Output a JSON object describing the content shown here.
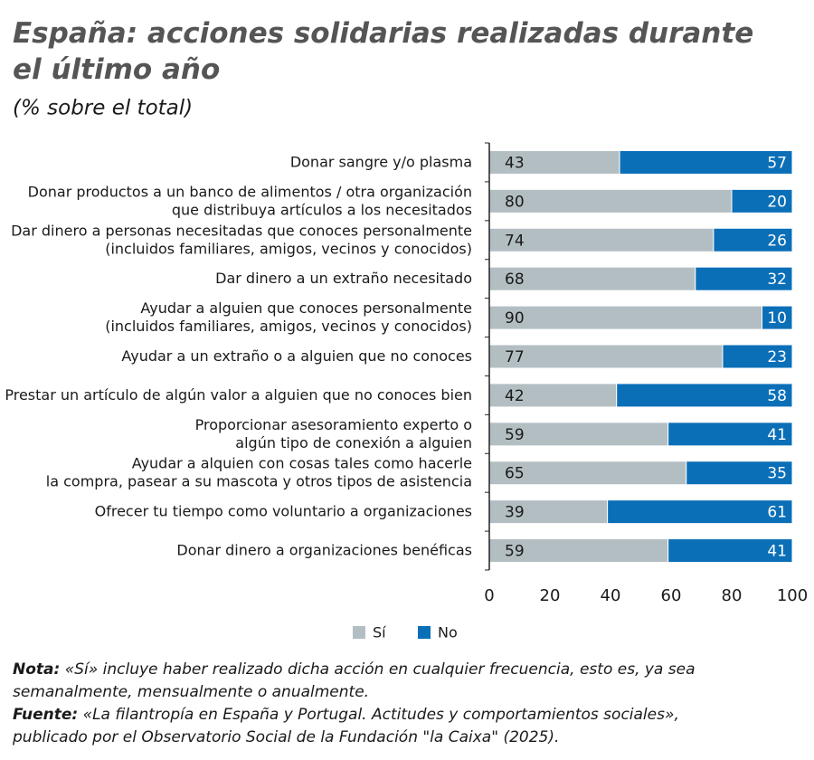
{
  "chart_data": {
    "type": "stacked-bar-horizontal",
    "title": "España: acciones solidarias realizadas durante\nel último año",
    "subtitle": "(% sobre el total)",
    "categories": [
      "Donar sangre y/o plasma",
      "Donar productos a un banco de alimentos / otra organización\nque distribuya artículos a los necesitados",
      "Dar dinero a personas necesitadas que conoces personalmente\n(incluidos familiares, amigos, vecinos y conocidos)",
      "Dar dinero  a un extraño necesitado",
      "Ayudar a alguien que conoces personalmente\n(incluidos familiares, amigos, vecinos y conocidos)",
      "Ayudar a un extraño o a alguien que no conoces",
      "Prestar un artículo de algún valor a alguien que no conoces bien",
      "Proporcionar asesoramiento experto o\nalgún tipo de conexión a alguien",
      "Ayudar a alquien con cosas tales como hacerle\nla compra, pasear a su mascota y otros tipos de asistencia",
      "Ofrecer tu tiempo como voluntario a organizaciones",
      "Donar dinero a organizaciones benéficas"
    ],
    "series": [
      {
        "name": "Sí",
        "color": "#b3bec3",
        "values": [
          43,
          80,
          74,
          68,
          90,
          77,
          42,
          59,
          65,
          39,
          59
        ]
      },
      {
        "name": "No",
        "color": "#0b6fb8",
        "values": [
          57,
          20,
          26,
          32,
          10,
          23,
          58,
          41,
          35,
          61,
          41
        ]
      }
    ],
    "xlim": [
      0,
      100
    ],
    "xticks": [
      0,
      20,
      40,
      60,
      80,
      100
    ],
    "grid": false,
    "legend": "bottom"
  },
  "notes": [
    {
      "label": "Nota:",
      "text": "«Sí» incluye haber realizado dicha acción en cualquier frecuencia, esto es, ya sea semanalmente, mensualmente o anualmente."
    },
    {
      "label": "Fuente:",
      "text": "«La filantropía en España y Portugal. Actitudes y comportamientos sociales», publicado por el Observatorio Social de la Fundación \"la Caixa\" (2025)."
    }
  ]
}
